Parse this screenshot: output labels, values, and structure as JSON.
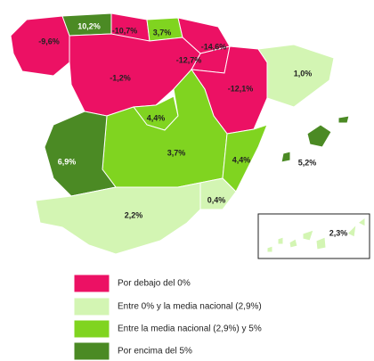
{
  "categories": [
    {
      "label": "Por debajo del 0%",
      "color": "#ec1164",
      "regions": [
        "-9,6%",
        "-10,7%",
        "-14,6%",
        "-12,7%",
        "-1,2%",
        "-12,1%"
      ]
    },
    {
      "label": "Entre 0% y la media nacional (2,9%)",
      "color": "#d3f5b3",
      "regions": [
        "1,0%",
        "0,4%",
        "2,2%",
        "2,3%"
      ]
    },
    {
      "label": "Entre la media nacional (2,9%) y 5%",
      "color": "#80d420",
      "regions": [
        "3,7%",
        "4,4%",
        "3,7%",
        "4,4%"
      ]
    },
    {
      "label": "Por encima del 5%",
      "color": "#4b8a24",
      "regions": [
        "10,2%",
        "6,9%",
        "5,2%"
      ]
    }
  ]
}
